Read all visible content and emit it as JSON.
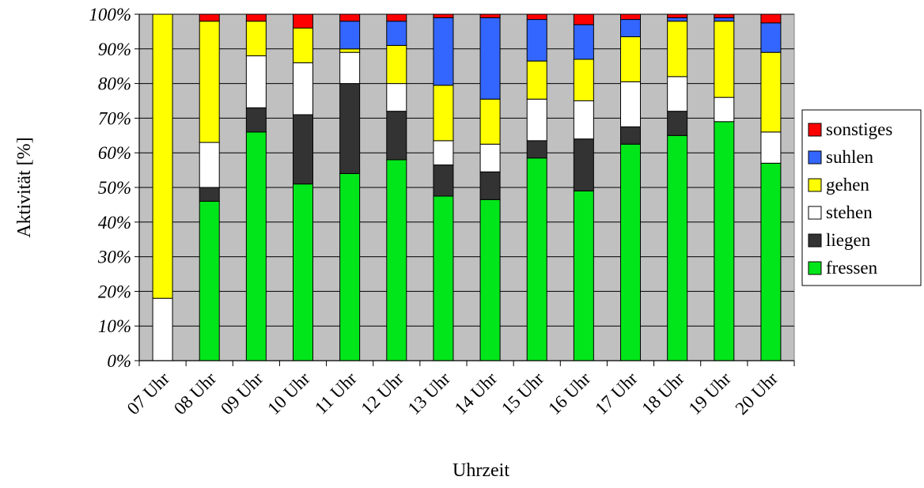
{
  "chart_data": {
    "type": "bar",
    "stacked": true,
    "stacked_percent": true,
    "xlabel": "Uhrzeit",
    "ylabel": "Aktivität [%]",
    "ylim": [
      0,
      100
    ],
    "y_ticks": [
      "0%",
      "10%",
      "20%",
      "30%",
      "40%",
      "50%",
      "60%",
      "70%",
      "80%",
      "90%",
      "100%"
    ],
    "grid": true,
    "plot_background": "#c0c0c0",
    "legend_position": "right",
    "categories": [
      "07 Uhr",
      "08 Uhr",
      "09 Uhr",
      "10 Uhr",
      "11 Uhr",
      "12 Uhr",
      "13 Uhr",
      "14 Uhr",
      "15 Uhr",
      "16 Uhr",
      "17 Uhr",
      "18 Uhr",
      "19 Uhr",
      "20 Uhr"
    ],
    "series": [
      {
        "name": "fressen",
        "color": "#00e61a",
        "values": [
          0,
          46,
          66,
          51,
          54,
          58,
          47.5,
          46.5,
          58.5,
          49,
          62.5,
          65,
          69,
          57
        ]
      },
      {
        "name": "liegen",
        "color": "#333333",
        "values": [
          0,
          4,
          7,
          20,
          26,
          14,
          9,
          8,
          5,
          15,
          5,
          7,
          0,
          0
        ]
      },
      {
        "name": "stehen",
        "color": "#ffffff",
        "values": [
          18,
          13,
          15,
          15,
          9,
          8,
          7,
          8,
          12,
          11,
          13,
          10,
          7,
          9
        ]
      },
      {
        "name": "gehen",
        "color": "#ffff00",
        "values": [
          82,
          35,
          10,
          10,
          1,
          11,
          16,
          13,
          11,
          12,
          13,
          16,
          22,
          23
        ]
      },
      {
        "name": "suhlen",
        "color": "#3366ff",
        "values": [
          0,
          0,
          0,
          0,
          8,
          7,
          19.5,
          23.5,
          12,
          10,
          5,
          1,
          1,
          8.5
        ]
      },
      {
        "name": "sonstiges",
        "color": "#ff0000",
        "values": [
          0,
          2,
          2,
          4,
          2,
          2,
          1,
          1,
          1.5,
          3,
          1.5,
          1,
          1,
          2.5
        ]
      }
    ],
    "legend_order": [
      "sonstiges",
      "suhlen",
      "gehen",
      "stehen",
      "liegen",
      "fressen"
    ]
  }
}
